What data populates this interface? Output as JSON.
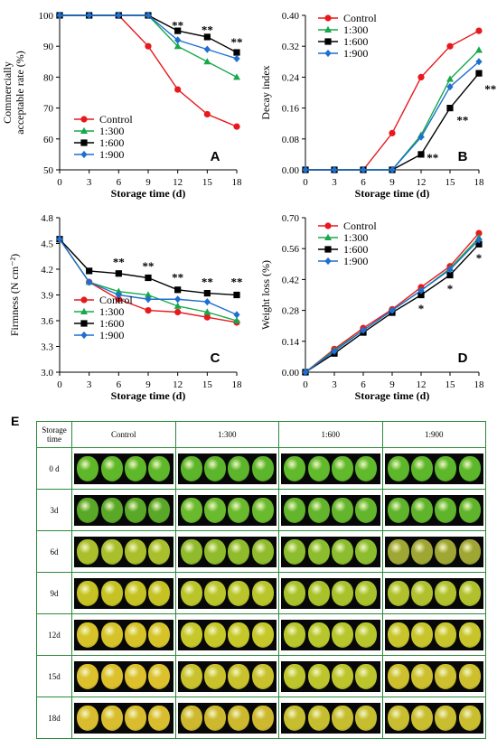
{
  "chart_data": [
    {
      "type": "line",
      "panel": "A",
      "x": [
        0,
        3,
        6,
        9,
        12,
        15,
        18
      ],
      "xlabel": "Storage time (d)",
      "ylabel": "Commercially acceptable rate (%)",
      "ylabel_lines": [
        "Commercially",
        "acceptable rate (%)"
      ],
      "ylim": [
        50,
        100
      ],
      "yticks": [
        "50",
        "60",
        "70",
        "80",
        "90",
        "100"
      ],
      "xticks": [
        "0",
        "3",
        "6",
        "9",
        "12",
        "15",
        "18"
      ],
      "legend_position": "bottom-left",
      "series": [
        {
          "name": "Control",
          "values": [
            100,
            100,
            100,
            90,
            76,
            68,
            64
          ]
        },
        {
          "name": "1:300",
          "values": [
            100,
            100,
            100,
            100,
            90,
            85,
            80
          ]
        },
        {
          "name": "1:600",
          "values": [
            100,
            100,
            100,
            100,
            95,
            93,
            88
          ]
        },
        {
          "name": "1:900",
          "values": [
            100,
            100,
            100,
            100,
            92,
            89,
            86
          ]
        }
      ],
      "annotations": [
        {
          "x": 12,
          "y": 97,
          "text": "**"
        },
        {
          "x": 15,
          "y": 95.5,
          "text": "**"
        },
        {
          "x": 18,
          "y": 91.5,
          "text": "**"
        }
      ]
    },
    {
      "type": "line",
      "panel": "B",
      "x": [
        0,
        3,
        6,
        9,
        12,
        15,
        18
      ],
      "xlabel": "Storage time (d)",
      "ylabel": "Decay index",
      "ylabel_lines": [
        "Decay index"
      ],
      "ylim": [
        0,
        0.4
      ],
      "yticks": [
        "0.00",
        "0.08",
        "0.16",
        "0.24",
        "0.32",
        "0.40"
      ],
      "xticks": [
        "0",
        "3",
        "6",
        "9",
        "12",
        "15",
        "18"
      ],
      "legend_position": "top-left",
      "series": [
        {
          "name": "Control",
          "values": [
            0,
            0,
            0,
            0.095,
            0.24,
            0.32,
            0.36
          ]
        },
        {
          "name": "1:300",
          "values": [
            0,
            0,
            0,
            0,
            0.09,
            0.235,
            0.31
          ]
        },
        {
          "name": "1:600",
          "values": [
            0,
            0,
            0,
            0,
            0.04,
            0.16,
            0.25
          ]
        },
        {
          "name": "1:900",
          "values": [
            0,
            0,
            0,
            0,
            0.085,
            0.215,
            0.28
          ]
        }
      ],
      "annotations": [
        {
          "x": 13.2,
          "y": 0.033,
          "text": "**"
        },
        {
          "x": 16.3,
          "y": 0.13,
          "text": "**"
        },
        {
          "x": 19.2,
          "y": 0.21,
          "text": "**"
        }
      ]
    },
    {
      "type": "line",
      "panel": "C",
      "x": [
        0,
        3,
        6,
        9,
        12,
        15,
        18
      ],
      "xlabel": "Storage time (d)",
      "ylabel": "Firmness (N cm⁻²)",
      "ylabel_lines": [
        "Firmness (N cm⁻²)"
      ],
      "ylim": [
        3.0,
        4.8
      ],
      "yticks": [
        "3.0",
        "3.3",
        "3.6",
        "3.9",
        "4.2",
        "4.5",
        "4.8"
      ],
      "xticks": [
        "0",
        "3",
        "6",
        "9",
        "12",
        "15",
        "18"
      ],
      "legend_position": "bottom-left",
      "series": [
        {
          "name": "Control",
          "values": [
            4.55,
            4.05,
            3.85,
            3.72,
            3.7,
            3.64,
            3.58
          ]
        },
        {
          "name": "1:300",
          "values": [
            4.55,
            4.05,
            3.94,
            3.9,
            3.77,
            3.7,
            3.6
          ]
        },
        {
          "name": "1:600",
          "values": [
            4.55,
            4.18,
            4.15,
            4.1,
            3.96,
            3.92,
            3.9
          ]
        },
        {
          "name": "1:900",
          "values": [
            4.55,
            4.05,
            3.9,
            3.85,
            3.85,
            3.82,
            3.67
          ]
        }
      ],
      "annotations": [
        {
          "x": 6,
          "y": 4.29,
          "text": "**"
        },
        {
          "x": 9,
          "y": 4.24,
          "text": "**"
        },
        {
          "x": 12,
          "y": 4.11,
          "text": "**"
        },
        {
          "x": 15,
          "y": 4.06,
          "text": "**"
        },
        {
          "x": 18,
          "y": 4.06,
          "text": "**"
        }
      ]
    },
    {
      "type": "line",
      "panel": "D",
      "x": [
        0,
        3,
        6,
        9,
        12,
        15,
        18
      ],
      "xlabel": "Storage time (d)",
      "ylabel": "Weight loss (%)",
      "ylabel_lines": [
        "Weight loss (%)"
      ],
      "ylim": [
        0,
        0.7
      ],
      "yticks": [
        "0.00",
        "0.14",
        "0.28",
        "0.42",
        "0.56",
        "0.70"
      ],
      "xticks": [
        "0",
        "3",
        "6",
        "9",
        "12",
        "15",
        "18"
      ],
      "legend_position": "top-left",
      "series": [
        {
          "name": "Control",
          "values": [
            0,
            0.105,
            0.2,
            0.285,
            0.385,
            0.48,
            0.63
          ]
        },
        {
          "name": "1:300",
          "values": [
            0,
            0.1,
            0.19,
            0.28,
            0.37,
            0.47,
            0.61
          ]
        },
        {
          "name": "1:600",
          "values": [
            0,
            0.085,
            0.18,
            0.27,
            0.35,
            0.44,
            0.58
          ]
        },
        {
          "name": "1:900",
          "values": [
            0,
            0.095,
            0.19,
            0.28,
            0.37,
            0.465,
            0.6
          ]
        }
      ],
      "annotations": [
        {
          "x": 12,
          "y": 0.29,
          "text": "*"
        },
        {
          "x": 15,
          "y": 0.38,
          "text": "*"
        },
        {
          "x": 18,
          "y": 0.52,
          "text": "*"
        }
      ]
    }
  ],
  "series_colors": [
    "#e8191c",
    "#18a84a",
    "#000000",
    "#1e6fd0"
  ],
  "series_markers": [
    "circle",
    "triangle",
    "square",
    "diamond"
  ],
  "panel_e": {
    "label": "E",
    "header_first": "Storage time",
    "header_first_lines": [
      "Storage",
      "time"
    ],
    "columns": [
      "Control",
      "1:300",
      "1:600",
      "1:900"
    ],
    "rows": [
      "0 d",
      "3d",
      "6d",
      "9d",
      "12d",
      "15d",
      "18d"
    ],
    "fruit_colors": [
      [
        "#5fb82a",
        "#5cb52b",
        "#61b92c",
        "#5db72a"
      ],
      [
        "#5aa828",
        "#6aba2e",
        "#63b52c",
        "#60b42c"
      ],
      [
        "#a9bf2c",
        "#8fbb2c",
        "#8cbd2e",
        "#a0a634"
      ],
      [
        "#c6c224",
        "#b9c52a",
        "#a9c22b",
        "#b0c12d"
      ],
      [
        "#d6c329",
        "#c6c82a",
        "#b7c62b",
        "#c8c42b"
      ],
      [
        "#dcc02c",
        "#c9c22d",
        "#bdc52c",
        "#cdbf2d"
      ],
      [
        "#d9bd2e",
        "#cdb82e",
        "#c6bd2f",
        "#c9bd30"
      ]
    ]
  }
}
